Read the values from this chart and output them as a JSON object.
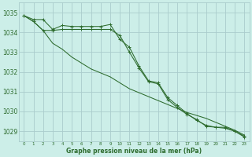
{
  "background_color": "#cceee8",
  "grid_color": "#aacccc",
  "line_color": "#2d6b2d",
  "xlabel": "Graphe pression niveau de la mer (hPa)",
  "ylim": [
    1028.5,
    1035.5
  ],
  "xlim": [
    -0.5,
    23.5
  ],
  "yticks": [
    1029,
    1030,
    1031,
    1032,
    1033,
    1034,
    1035
  ],
  "xticks": [
    0,
    1,
    2,
    3,
    4,
    5,
    6,
    7,
    8,
    9,
    10,
    11,
    12,
    13,
    14,
    15,
    16,
    17,
    18,
    19,
    20,
    21,
    22,
    23
  ],
  "series": [
    [
      1034.85,
      1034.65,
      1034.65,
      1034.15,
      1034.35,
      1034.3,
      1034.3,
      1034.3,
      1034.3,
      1034.4,
      1033.65,
      1033.25,
      1032.3,
      1031.55,
      1031.45,
      1030.7,
      1030.3,
      1029.9,
      1029.55,
      1029.3,
      1029.2,
      1029.2,
      1029.0,
      1028.75
    ],
    [
      1034.85,
      1034.55,
      1034.1,
      1034.1,
      1034.15,
      1034.15,
      1034.15,
      1034.15,
      1034.15,
      1034.15,
      1033.85,
      1033.0,
      1032.2,
      1031.5,
      1031.4,
      1030.6,
      1030.2,
      1029.85,
      1029.6,
      1029.25,
      1029.2,
      1029.15,
      1029.0,
      1028.7
    ],
    [
      1034.85,
      1034.55,
      1034.1,
      1033.45,
      1033.15,
      1032.75,
      1032.45,
      1032.15,
      1031.95,
      1031.75,
      1031.45,
      1031.15,
      1030.95,
      1030.75,
      1030.55,
      1030.35,
      1030.15,
      1029.95,
      1029.8,
      1029.65,
      1029.45,
      1029.25,
      1029.05,
      1028.8
    ]
  ]
}
